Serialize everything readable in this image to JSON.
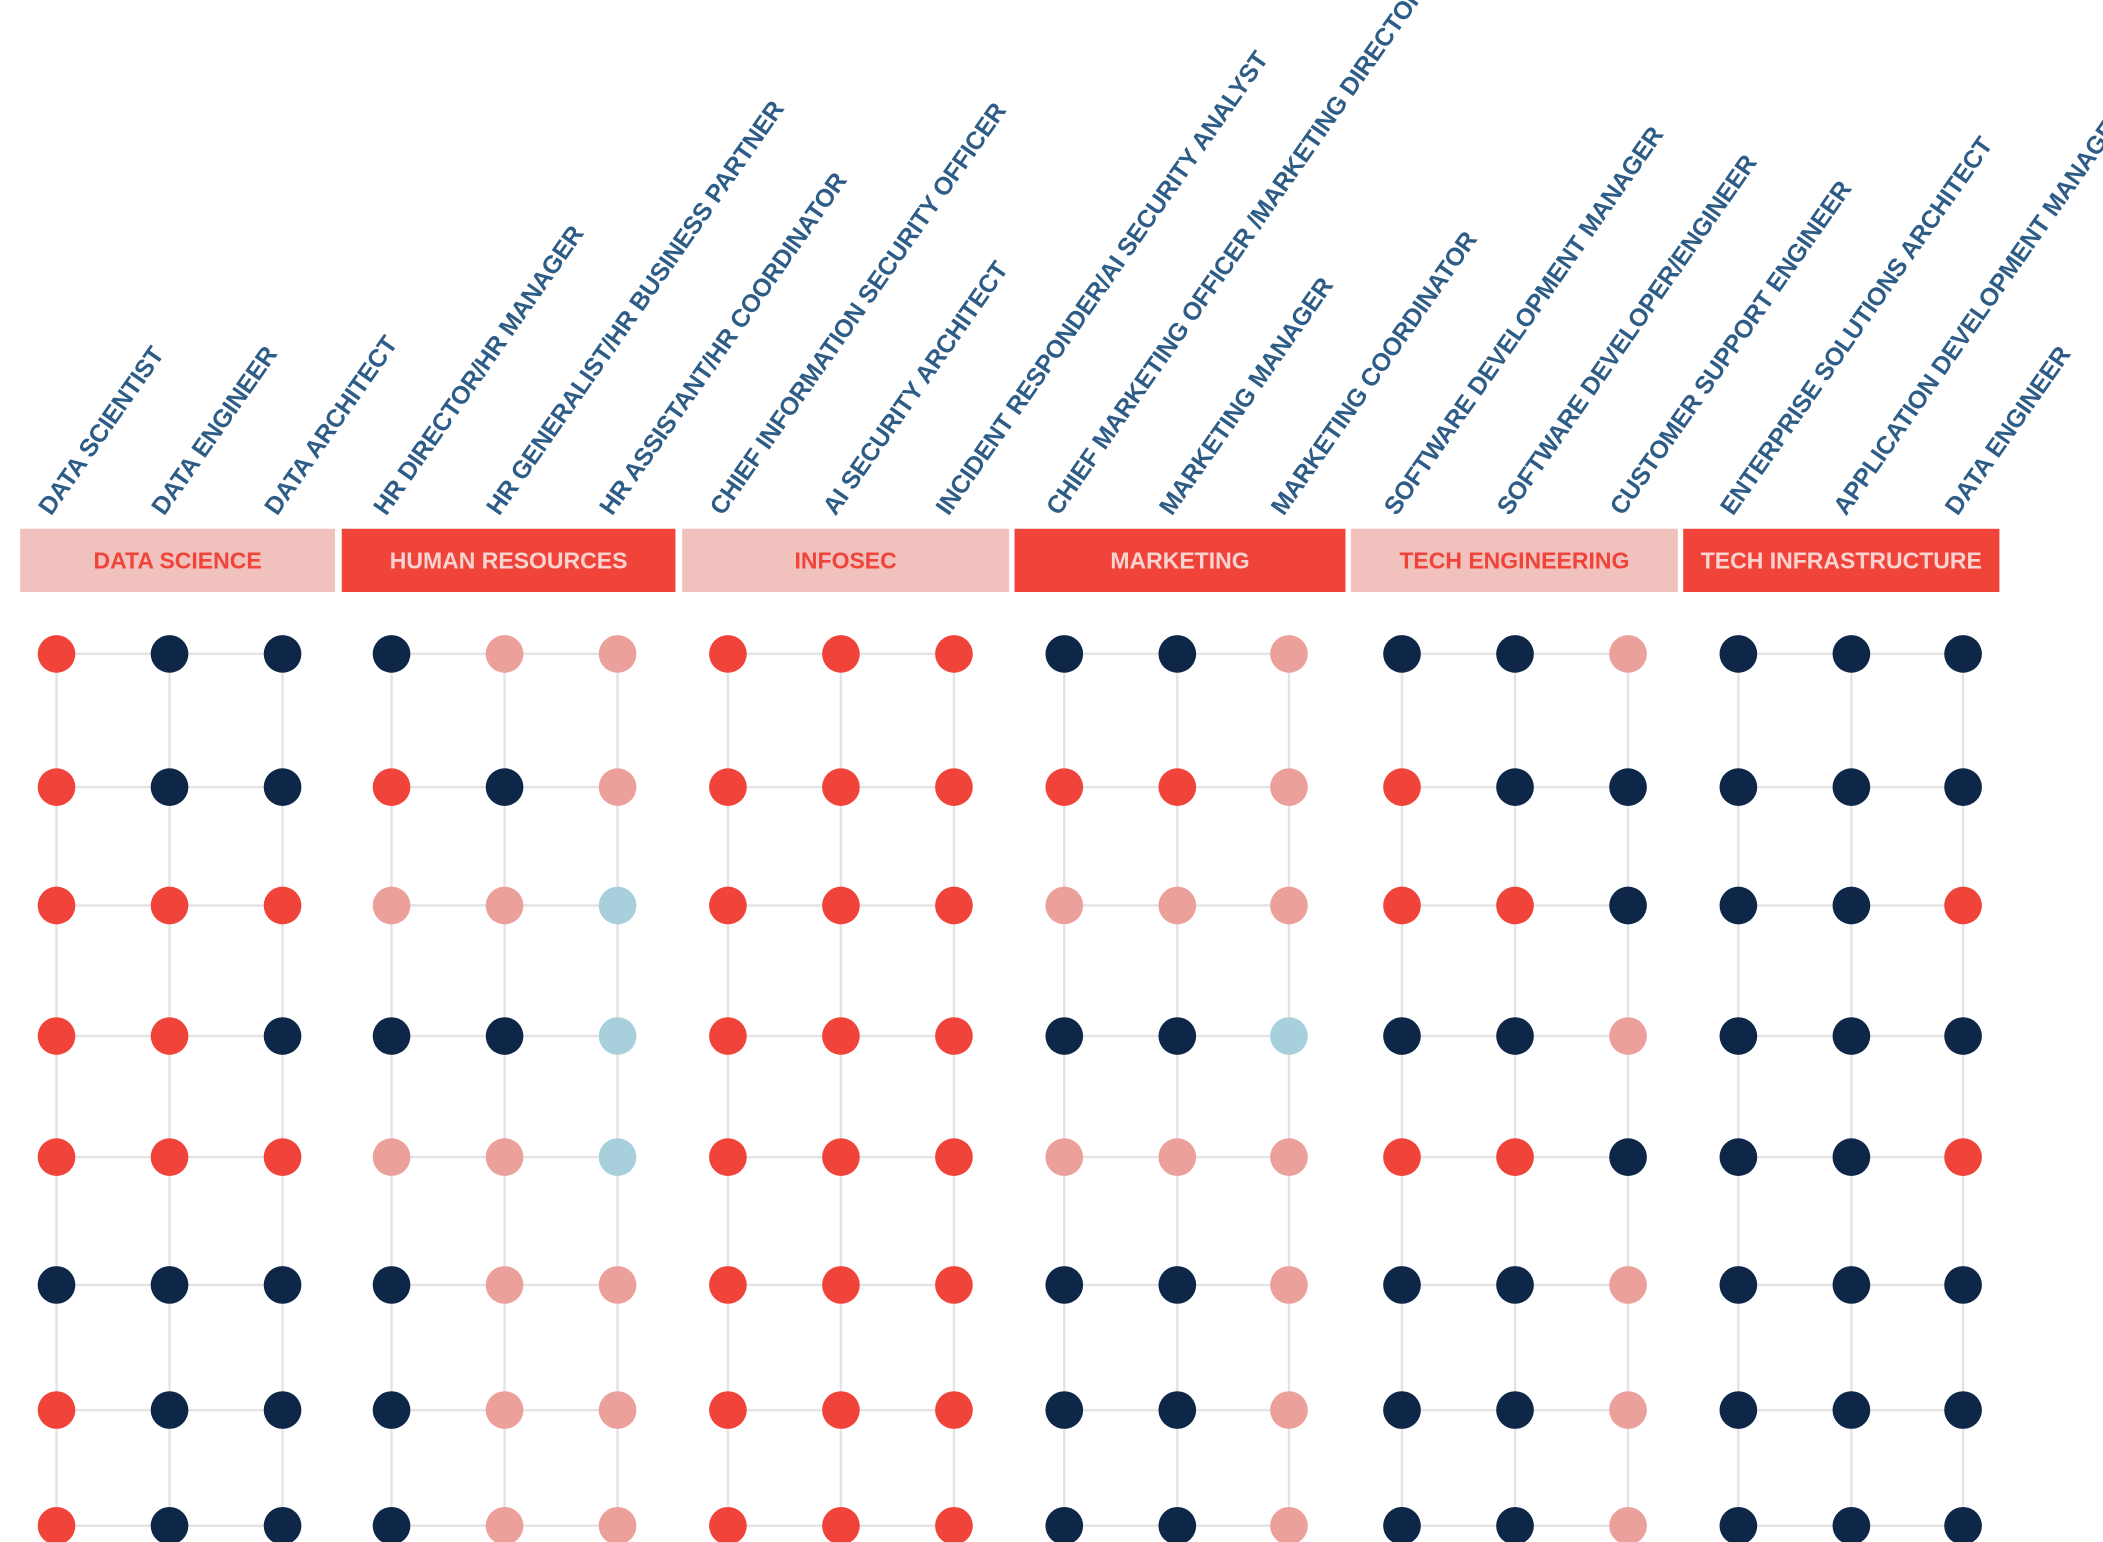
{
  "chart_data": {
    "type": "dot-matrix",
    "groups": [
      {
        "name": "DATA SCIENCE",
        "style": "light",
        "roles": [
          "DATA SCIENTIST",
          "DATA ENGINEER",
          "DATA ARCHITECT"
        ]
      },
      {
        "name": "HUMAN RESOURCES",
        "style": "solid",
        "roles": [
          "HR DIRECTOR/HR MANAGER",
          "HR GENERALIST/HR BUSINESS PARTNER",
          "HR ASSISTANT/HR COORDINATOR"
        ]
      },
      {
        "name": "INFOSEC",
        "style": "light",
        "roles": [
          "CHIEF INFORMATION SECURITY OFFICER",
          "AI SECURITY ARCHITECT",
          "INCIDENT RESPONDER/AI SECURITY ANALYST"
        ]
      },
      {
        "name": "MARKETING",
        "style": "solid",
        "roles": [
          "CHIEF MARKETING OFFICER /MARKETING DIRECTOR",
          "MARKETING MANAGER",
          "MARKETING COORDINATOR"
        ]
      },
      {
        "name": "TECH ENGINEERING",
        "style": "light",
        "roles": [
          "SOFTWARE DEVELOPMENT MANAGER",
          "SOFTWARE DEVELOPER/ENGINEER",
          "CUSTOMER SUPPORT ENGINEER"
        ]
      },
      {
        "name": "TECH INFRASTRUCTURE",
        "style": "solid",
        "roles": [
          "ENTERPRISE SOLUTIONS ARCHITECT",
          "APPLICATION DEVELOPMENT MANAGER",
          "DATA ENGINEER"
        ]
      }
    ],
    "row_count": 8,
    "levels": [
      "red",
      "navy",
      "pink",
      "lightblue"
    ],
    "matrix": [
      [
        "red",
        "navy",
        "navy",
        "navy",
        "pink",
        "pink",
        "red",
        "red",
        "red",
        "navy",
        "navy",
        "pink",
        "navy",
        "navy",
        "pink",
        "navy",
        "navy",
        "navy"
      ],
      [
        "red",
        "navy",
        "navy",
        "red",
        "navy",
        "pink",
        "red",
        "red",
        "red",
        "red",
        "red",
        "pink",
        "red",
        "navy",
        "navy",
        "navy",
        "navy",
        "navy"
      ],
      [
        "red",
        "red",
        "red",
        "pink",
        "pink",
        "lightblue",
        "red",
        "red",
        "red",
        "pink",
        "pink",
        "pink",
        "red",
        "red",
        "navy",
        "navy",
        "navy",
        "red"
      ],
      [
        "red",
        "red",
        "navy",
        "navy",
        "navy",
        "lightblue",
        "red",
        "red",
        "red",
        "navy",
        "navy",
        "lightblue",
        "navy",
        "navy",
        "pink",
        "navy",
        "navy",
        "navy"
      ],
      [
        "red",
        "red",
        "red",
        "pink",
        "pink",
        "lightblue",
        "red",
        "red",
        "red",
        "pink",
        "pink",
        "pink",
        "red",
        "red",
        "navy",
        "navy",
        "navy",
        "red"
      ],
      [
        "navy",
        "navy",
        "navy",
        "navy",
        "pink",
        "pink",
        "red",
        "red",
        "red",
        "navy",
        "navy",
        "pink",
        "navy",
        "navy",
        "pink",
        "navy",
        "navy",
        "navy"
      ],
      [
        "red",
        "navy",
        "navy",
        "navy",
        "pink",
        "pink",
        "red",
        "red",
        "red",
        "navy",
        "navy",
        "pink",
        "navy",
        "navy",
        "pink",
        "navy",
        "navy",
        "navy"
      ],
      [
        "red",
        "navy",
        "navy",
        "navy",
        "pink",
        "pink",
        "red",
        "red",
        "red",
        "navy",
        "navy",
        "pink",
        "navy",
        "navy",
        "pink",
        "navy",
        "navy",
        "navy"
      ]
    ],
    "colors": {
      "red": "#f0443a",
      "navy": "#0e2748",
      "pink": "#eca09b",
      "lightblue": "#a8d0dc",
      "band_light": "#f1c1bd",
      "band_solid": "#f0443a",
      "band_light_text": "#f0443a",
      "band_solid_text": "#f8d3d0",
      "role_text": "#2d5c86",
      "gridline": "#e4e4e6"
    }
  }
}
